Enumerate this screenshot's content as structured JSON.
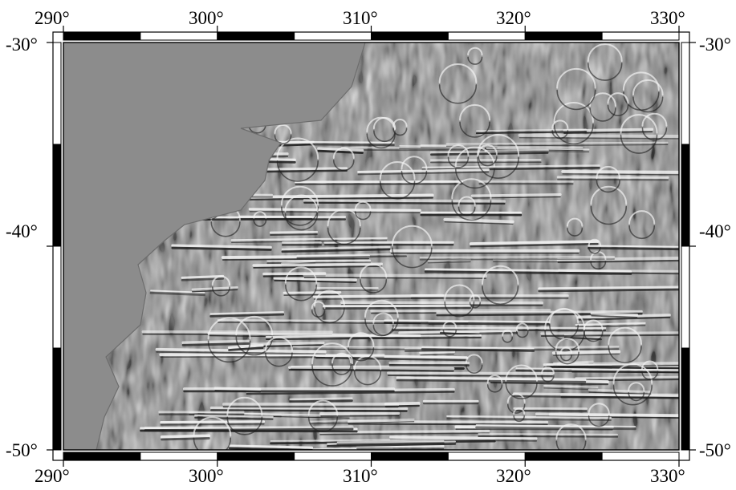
{
  "map": {
    "projection": "Mercator",
    "frame_style": "fancy (alternating black/white)",
    "shading": "grayscale shaded relief (illumination from north-west)",
    "land_color": "#8c8c8c",
    "relief_light_color": "#f2f2f2",
    "relief_dark_color": "#1e1e1e",
    "frame_color": "#000000",
    "background_color": "#ffffff",
    "lon_range": [
      290,
      330
    ],
    "lat_range": [
      -50,
      -30
    ],
    "frame_tick_interval_lon": 5,
    "frame_tick_interval_lat": 5,
    "annotation_interval": 10,
    "lon_labels_top": [
      "290°",
      "300°",
      "310°",
      "320°",
      "330°"
    ],
    "lon_labels_bottom": [
      "290°",
      "300°",
      "310°",
      "320°",
      "330°"
    ],
    "lat_labels_left": [
      "-30°",
      "-40°",
      "-50°"
    ],
    "lat_labels_right": [
      "-30°",
      "-40°",
      "-50°"
    ]
  }
}
